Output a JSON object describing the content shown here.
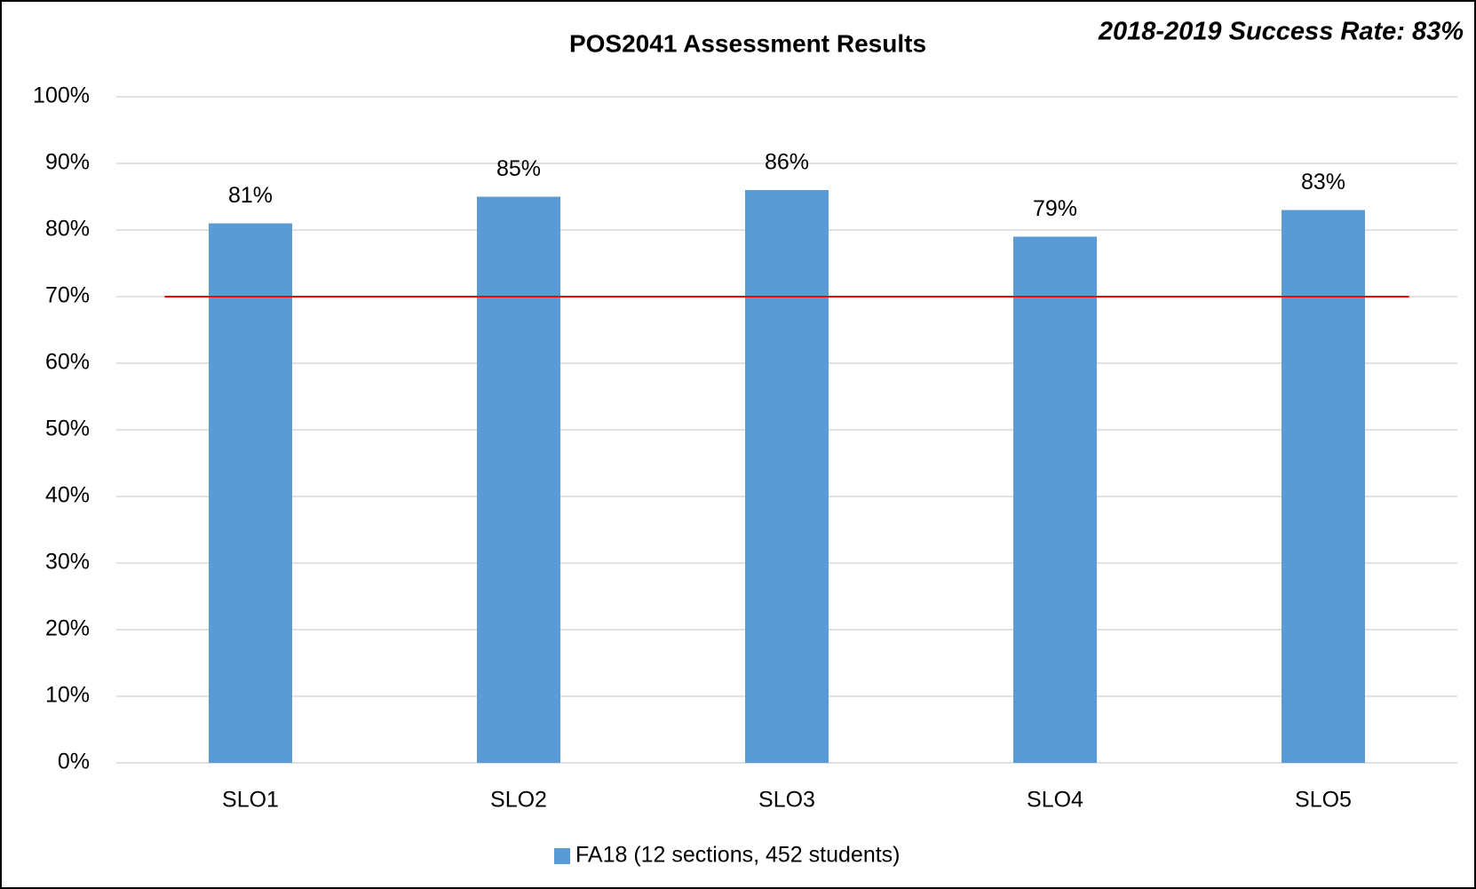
{
  "chart_data": {
    "type": "bar",
    "title": "POS2041 Assessment Results",
    "annotation": "2018-2019 Success Rate: 83%",
    "categories": [
      "SLO1",
      "SLO2",
      "SLO3",
      "SLO4",
      "SLO5"
    ],
    "series": [
      {
        "name": "FA18 (12 sections, 452 students)",
        "color": "#5b9bd5",
        "values": [
          81,
          85,
          86,
          79,
          83
        ],
        "value_labels": [
          "81%",
          "85%",
          "86%",
          "79%",
          "83%"
        ]
      }
    ],
    "ylim": [
      0,
      100
    ],
    "yticks": [
      {
        "value": 0,
        "label": "0%"
      },
      {
        "value": 10,
        "label": "10%"
      },
      {
        "value": 20,
        "label": "20%"
      },
      {
        "value": 30,
        "label": "30%"
      },
      {
        "value": 40,
        "label": "40%"
      },
      {
        "value": 50,
        "label": "50%"
      },
      {
        "value": 60,
        "label": "60%"
      },
      {
        "value": 70,
        "label": "70%"
      },
      {
        "value": 80,
        "label": "80%"
      },
      {
        "value": 90,
        "label": "90%"
      },
      {
        "value": 100,
        "label": "100%"
      }
    ],
    "grid": true,
    "legend": "bottom",
    "reference_line": {
      "value": 70,
      "color": "#ff0000"
    }
  }
}
